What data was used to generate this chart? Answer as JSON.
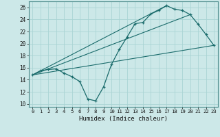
{
  "xlabel": "Humidex (Indice chaleur)",
  "bg_color": "#cce8e8",
  "line_color": "#1a6b6b",
  "grid_color": "#aad4d4",
  "xlim": [
    -0.5,
    23.5
  ],
  "ylim": [
    9.5,
    27.0
  ],
  "xticks": [
    0,
    1,
    2,
    3,
    4,
    5,
    6,
    7,
    8,
    9,
    10,
    11,
    12,
    13,
    14,
    15,
    16,
    17,
    18,
    19,
    20,
    21,
    22,
    23
  ],
  "yticks": [
    10,
    12,
    14,
    16,
    18,
    20,
    22,
    24,
    26
  ],
  "main_series": {
    "x": [
      0,
      1,
      2,
      3,
      4,
      5,
      6,
      7,
      8,
      9,
      10,
      11,
      12,
      13,
      14,
      15,
      16,
      17,
      18,
      19,
      20,
      21,
      22,
      23
    ],
    "y": [
      14.8,
      15.5,
      15.7,
      15.8,
      15.1,
      14.5,
      13.7,
      10.8,
      10.5,
      12.8,
      16.5,
      19.0,
      21.1,
      23.3,
      23.5,
      24.9,
      25.5,
      26.3,
      25.7,
      25.5,
      24.8,
      23.2,
      21.5,
      19.7
    ]
  },
  "straight_lines": [
    {
      "x": [
        0,
        17
      ],
      "y": [
        14.8,
        26.3
      ]
    },
    {
      "x": [
        0,
        20
      ],
      "y": [
        14.8,
        24.8
      ]
    },
    {
      "x": [
        0,
        23
      ],
      "y": [
        14.8,
        19.7
      ]
    }
  ]
}
